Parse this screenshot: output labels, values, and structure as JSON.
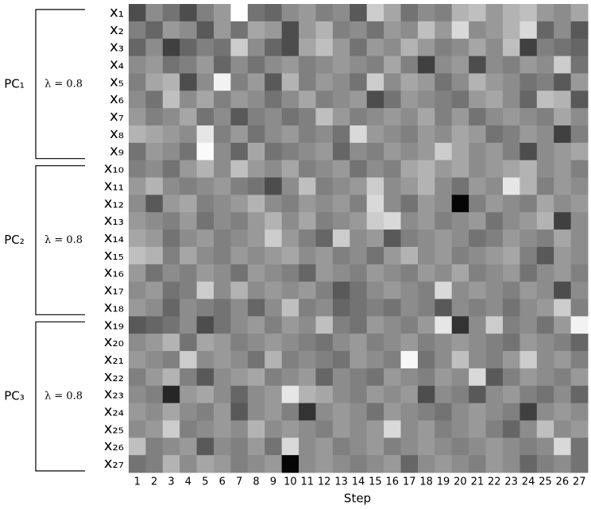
{
  "chart_data": {
    "type": "heatmap",
    "xlabel": "Step",
    "colormap": "gray",
    "vlim": [
      0,
      1
    ],
    "categories": [
      1,
      2,
      3,
      4,
      5,
      6,
      7,
      8,
      9,
      10,
      11,
      12,
      13,
      14,
      15,
      16,
      17,
      18,
      19,
      20,
      21,
      22,
      23,
      24,
      25,
      26,
      27
    ],
    "rows": [
      "x₁",
      "x₂",
      "x₃",
      "x₄",
      "x₅",
      "x₆",
      "x₇",
      "x₈",
      "x₉",
      "x₁₀",
      "x₁₁",
      "x₁₂",
      "x₁₃",
      "x₁₄",
      "x₁₅",
      "x₁₆",
      "x₁₇",
      "x₁₈",
      "x₁₉",
      "x₂₀",
      "x₂₁",
      "x₂₂",
      "x₂₃",
      "x₂₄",
      "x₂₅",
      "x₂₆",
      "x₂₇"
    ],
    "groups": [
      {
        "label": "PC₁",
        "lambda": "λ = 0.8"
      },
      {
        "label": "PC₂",
        "lambda": "λ = 0.8"
      },
      {
        "label": "PC₃",
        "lambda": "λ = 0.8"
      }
    ],
    "z": [
      [
        0.3,
        0.55,
        0.45,
        0.3,
        0.5,
        0.6,
        1.0,
        0.45,
        0.4,
        0.55,
        0.6,
        0.5,
        0.55,
        0.35,
        0.8,
        0.65,
        0.45,
        0.55,
        0.5,
        0.7,
        0.75,
        0.6,
        0.7,
        0.75,
        0.6,
        0.55,
        0.65
      ],
      [
        0.5,
        0.4,
        0.6,
        0.55,
        0.35,
        0.6,
        0.45,
        0.65,
        0.6,
        0.3,
        0.6,
        0.7,
        0.5,
        0.55,
        0.45,
        0.6,
        0.55,
        0.75,
        0.6,
        0.85,
        0.55,
        0.6,
        0.7,
        0.85,
        0.4,
        0.55,
        0.35
      ],
      [
        0.4,
        0.55,
        0.25,
        0.4,
        0.5,
        0.45,
        0.8,
        0.55,
        0.4,
        0.3,
        0.65,
        0.75,
        0.6,
        0.45,
        0.6,
        0.55,
        0.7,
        0.6,
        0.5,
        0.55,
        0.65,
        0.55,
        0.75,
        0.25,
        0.5,
        0.45,
        0.4
      ],
      [
        0.55,
        0.6,
        0.45,
        0.5,
        0.6,
        0.4,
        0.55,
        0.45,
        0.55,
        0.6,
        0.5,
        0.55,
        0.6,
        0.55,
        0.5,
        0.65,
        0.5,
        0.25,
        0.55,
        0.6,
        0.3,
        0.55,
        0.5,
        0.6,
        0.55,
        0.8,
        0.45
      ],
      [
        0.5,
        0.65,
        0.7,
        0.3,
        0.55,
        0.95,
        0.5,
        0.6,
        0.35,
        0.7,
        0.5,
        0.6,
        0.55,
        0.45,
        0.8,
        0.55,
        0.65,
        0.6,
        0.45,
        0.55,
        0.7,
        0.6,
        0.55,
        0.45,
        0.5,
        0.35,
        0.6
      ],
      [
        0.55,
        0.45,
        0.75,
        0.55,
        0.65,
        0.5,
        0.6,
        0.55,
        0.45,
        0.55,
        0.65,
        0.5,
        0.55,
        0.6,
        0.3,
        0.45,
        0.6,
        0.55,
        0.5,
        0.45,
        0.6,
        0.65,
        0.55,
        0.4,
        0.75,
        0.7,
        0.35
      ],
      [
        0.6,
        0.5,
        0.55,
        0.65,
        0.45,
        0.55,
        0.35,
        0.5,
        0.55,
        0.45,
        0.5,
        0.75,
        0.6,
        0.5,
        0.55,
        0.6,
        0.55,
        0.65,
        0.5,
        0.6,
        0.45,
        0.55,
        0.6,
        0.55,
        0.5,
        0.65,
        0.55
      ],
      [
        0.7,
        0.65,
        0.6,
        0.55,
        0.9,
        0.5,
        0.6,
        0.45,
        0.55,
        0.6,
        0.5,
        0.55,
        0.45,
        0.85,
        0.6,
        0.55,
        0.5,
        0.6,
        0.55,
        0.65,
        0.6,
        0.45,
        0.5,
        0.6,
        0.55,
        0.25,
        0.5
      ],
      [
        0.45,
        0.6,
        0.55,
        0.45,
        0.98,
        0.55,
        0.4,
        0.65,
        0.45,
        0.5,
        0.55,
        0.6,
        0.4,
        0.55,
        0.5,
        0.6,
        0.55,
        0.6,
        0.8,
        0.65,
        0.55,
        0.6,
        0.5,
        0.3,
        0.55,
        0.6,
        0.65
      ],
      [
        0.5,
        0.55,
        0.45,
        0.6,
        0.7,
        0.55,
        0.75,
        0.6,
        0.55,
        0.65,
        0.5,
        0.55,
        0.6,
        0.45,
        0.55,
        0.5,
        0.65,
        0.7,
        0.6,
        0.65,
        0.55,
        0.6,
        0.65,
        0.7,
        0.55,
        0.6,
        0.5
      ],
      [
        0.6,
        0.7,
        0.55,
        0.5,
        0.55,
        0.6,
        0.5,
        0.45,
        0.3,
        0.55,
        0.75,
        0.5,
        0.55,
        0.6,
        0.8,
        0.55,
        0.6,
        0.7,
        0.55,
        0.45,
        0.6,
        0.55,
        0.9,
        0.7,
        0.5,
        0.6,
        0.55
      ],
      [
        0.55,
        0.35,
        0.6,
        0.65,
        0.5,
        0.55,
        0.6,
        0.7,
        0.55,
        0.5,
        0.6,
        0.55,
        0.6,
        0.5,
        0.85,
        0.55,
        0.45,
        0.6,
        0.55,
        0.02,
        0.5,
        0.6,
        0.55,
        0.5,
        0.65,
        0.55,
        0.6
      ],
      [
        0.6,
        0.55,
        0.5,
        0.6,
        0.45,
        0.55,
        0.5,
        0.6,
        0.7,
        0.55,
        0.65,
        0.5,
        0.55,
        0.6,
        0.8,
        0.85,
        0.55,
        0.6,
        0.5,
        0.55,
        0.6,
        0.45,
        0.55,
        0.6,
        0.7,
        0.25,
        0.55
      ],
      [
        0.65,
        0.6,
        0.45,
        0.55,
        0.6,
        0.5,
        0.55,
        0.6,
        0.8,
        0.6,
        0.5,
        0.4,
        0.8,
        0.55,
        0.6,
        0.35,
        0.5,
        0.55,
        0.6,
        0.55,
        0.45,
        0.5,
        0.6,
        0.55,
        0.5,
        0.65,
        0.55
      ],
      [
        0.75,
        0.7,
        0.5,
        0.65,
        0.55,
        0.5,
        0.6,
        0.55,
        0.6,
        0.65,
        0.55,
        0.6,
        0.5,
        0.55,
        0.45,
        0.6,
        0.7,
        0.55,
        0.6,
        0.5,
        0.55,
        0.6,
        0.65,
        0.5,
        0.35,
        0.6,
        0.55
      ],
      [
        0.6,
        0.45,
        0.55,
        0.5,
        0.6,
        0.55,
        0.45,
        0.6,
        0.55,
        0.5,
        0.4,
        0.6,
        0.55,
        0.5,
        0.6,
        0.55,
        0.5,
        0.6,
        0.55,
        0.65,
        0.5,
        0.55,
        0.6,
        0.45,
        0.55,
        0.6,
        0.5
      ],
      [
        0.55,
        0.6,
        0.45,
        0.5,
        0.8,
        0.55,
        0.7,
        0.55,
        0.6,
        0.55,
        0.6,
        0.5,
        0.35,
        0.45,
        0.55,
        0.6,
        0.55,
        0.5,
        0.85,
        0.55,
        0.6,
        0.55,
        0.5,
        0.6,
        0.55,
        0.3,
        0.55
      ],
      [
        0.6,
        0.55,
        0.4,
        0.55,
        0.5,
        0.45,
        0.55,
        0.4,
        0.55,
        0.75,
        0.5,
        0.55,
        0.4,
        0.45,
        0.5,
        0.45,
        0.55,
        0.5,
        0.35,
        0.55,
        0.5,
        0.55,
        0.45,
        0.55,
        0.6,
        0.8,
        0.5
      ],
      [
        0.35,
        0.4,
        0.45,
        0.55,
        0.3,
        0.45,
        0.55,
        0.6,
        0.5,
        0.6,
        0.55,
        0.75,
        0.5,
        0.45,
        0.6,
        0.55,
        0.5,
        0.6,
        0.9,
        0.2,
        0.55,
        0.8,
        0.5,
        0.55,
        0.45,
        0.6,
        0.95
      ],
      [
        0.55,
        0.6,
        0.7,
        0.45,
        0.65,
        0.6,
        0.5,
        0.55,
        0.6,
        0.55,
        0.5,
        0.45,
        0.55,
        0.6,
        0.5,
        0.55,
        0.6,
        0.5,
        0.55,
        0.6,
        0.55,
        0.5,
        0.45,
        0.6,
        0.55,
        0.5,
        0.4
      ],
      [
        0.6,
        0.55,
        0.5,
        0.8,
        0.55,
        0.6,
        0.55,
        0.45,
        0.7,
        0.5,
        0.55,
        0.5,
        0.45,
        0.6,
        0.55,
        0.5,
        0.97,
        0.45,
        0.55,
        0.75,
        0.55,
        0.5,
        0.6,
        0.8,
        0.55,
        0.6,
        0.5
      ],
      [
        0.5,
        0.6,
        0.7,
        0.5,
        0.35,
        0.55,
        0.6,
        0.65,
        0.5,
        0.55,
        0.6,
        0.4,
        0.55,
        0.5,
        0.45,
        0.6,
        0.55,
        0.5,
        0.6,
        0.55,
        0.85,
        0.35,
        0.5,
        0.6,
        0.55,
        0.5,
        0.6
      ],
      [
        0.55,
        0.5,
        0.15,
        0.6,
        0.65,
        0.55,
        0.4,
        0.55,
        0.6,
        0.9,
        0.7,
        0.65,
        0.55,
        0.5,
        0.6,
        0.55,
        0.6,
        0.3,
        0.55,
        0.5,
        0.35,
        0.55,
        0.6,
        0.5,
        0.45,
        0.55,
        0.4
      ],
      [
        0.6,
        0.55,
        0.65,
        0.55,
        0.5,
        0.6,
        0.35,
        0.55,
        0.6,
        0.5,
        0.2,
        0.55,
        0.6,
        0.55,
        0.45,
        0.6,
        0.55,
        0.5,
        0.45,
        0.55,
        0.6,
        0.55,
        0.5,
        0.25,
        0.55,
        0.6,
        0.55
      ],
      [
        0.55,
        0.6,
        0.8,
        0.5,
        0.55,
        0.6,
        0.55,
        0.7,
        0.55,
        0.6,
        0.55,
        0.5,
        0.6,
        0.55,
        0.6,
        0.85,
        0.55,
        0.6,
        0.5,
        0.55,
        0.6,
        0.5,
        0.4,
        0.55,
        0.75,
        0.55,
        0.6
      ],
      [
        0.75,
        0.5,
        0.55,
        0.6,
        0.35,
        0.55,
        0.5,
        0.6,
        0.45,
        0.85,
        0.55,
        0.6,
        0.5,
        0.55,
        0.6,
        0.5,
        0.55,
        0.6,
        0.55,
        0.5,
        0.55,
        0.6,
        0.55,
        0.5,
        0.55,
        0.85,
        0.45
      ],
      [
        0.45,
        0.5,
        0.7,
        0.55,
        0.65,
        0.6,
        0.5,
        0.55,
        0.6,
        0.02,
        0.55,
        0.6,
        0.55,
        0.5,
        0.55,
        0.6,
        0.4,
        0.55,
        0.6,
        0.55,
        0.5,
        0.6,
        0.55,
        0.4,
        0.5,
        0.55,
        0.45
      ]
    ]
  }
}
